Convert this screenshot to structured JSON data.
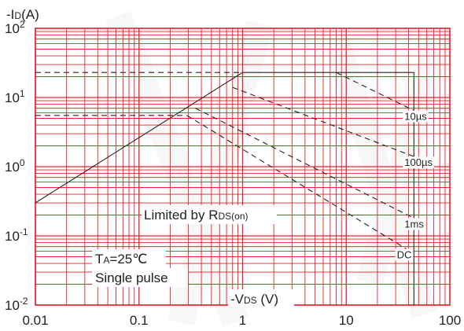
{
  "chart_data": {
    "type": "line",
    "title": "",
    "ylabel": "-ID(A)",
    "xlabel": "-VDS (V)",
    "x_scale": "log",
    "y_scale": "log",
    "xlim": [
      0.01,
      100
    ],
    "ylim": [
      0.01,
      100
    ],
    "grid": true,
    "x_ticks": [
      {
        "value": 0.01,
        "label": "0.01"
      },
      {
        "value": 0.1,
        "label": "0.1"
      },
      {
        "value": 1,
        "label": "1"
      },
      {
        "value": 10,
        "label": "10"
      },
      {
        "value": 100,
        "label": "100"
      }
    ],
    "y_ticks": [
      {
        "value": 100,
        "base": "10",
        "exp": "2"
      },
      {
        "value": 10,
        "base": "10",
        "exp": "1"
      },
      {
        "value": 1,
        "base": "10",
        "exp": "0"
      },
      {
        "value": 0.1,
        "base": "10",
        "exp": "-1"
      },
      {
        "value": 0.01,
        "base": "10",
        "exp": "-2"
      }
    ],
    "series": [
      {
        "name": "",
        "style": "solid",
        "points": [
          [
            0.01,
            0.3
          ],
          [
            1.0,
            23
          ],
          [
            45,
            23
          ],
          [
            45,
            0.01
          ]
        ]
      },
      {
        "name": "",
        "style": "dashed",
        "points": [
          [
            0.01,
            23
          ],
          [
            1.0,
            23
          ]
        ]
      },
      {
        "name": "",
        "style": "dashed",
        "points": [
          [
            0.01,
            5.5
          ],
          [
            0.29,
            5.5
          ]
        ]
      },
      {
        "name": "10µs",
        "style": "dashed",
        "points": [
          [
            8,
            23
          ],
          [
            45,
            6.5
          ]
        ]
      },
      {
        "name": "100µs",
        "style": "dashed",
        "points": [
          [
            0.8,
            14
          ],
          [
            45,
            1.4
          ]
        ]
      },
      {
        "name": "1ms",
        "style": "dashed",
        "points": [
          [
            0.35,
            7
          ],
          [
            45,
            0.18
          ]
        ]
      },
      {
        "name": "DC",
        "style": "dashed",
        "points": [
          [
            0.29,
            5.5
          ],
          [
            38,
            0.065
          ]
        ]
      }
    ],
    "annotations": {
      "limited": {
        "pre": "Limited by R",
        "sub": "DS(on)"
      },
      "ta": {
        "pre": "T",
        "sub": "A",
        "post": "=25℃"
      },
      "pulse": "Single pulse",
      "ylabel": {
        "pre": "-I",
        "sub": "D",
        "post": "(A)"
      },
      "xlabel": {
        "pre": "-V",
        "sub": "DS",
        "post": " (V)"
      }
    }
  },
  "colors": {
    "grid": "#e8202a",
    "curve": "#222222",
    "label_bg": "#ffffff",
    "watermark": "#bfbfbf"
  }
}
